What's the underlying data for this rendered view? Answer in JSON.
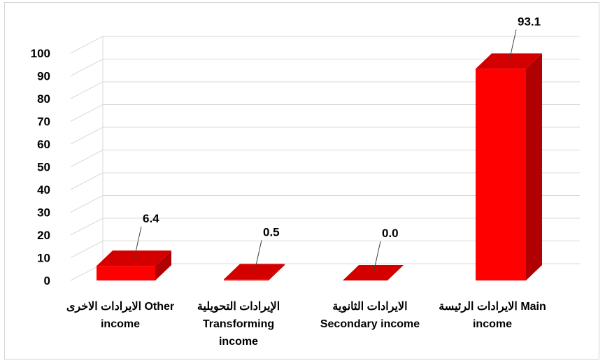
{
  "chart_data": {
    "type": "bar",
    "style": "3d-column",
    "categories": [
      [
        "الايرادات الاخرى  Other",
        "income"
      ],
      [
        "الإيرادات التحويلية",
        "Transforming",
        "income"
      ],
      [
        "الايرادات الثانوية",
        "Secondary income"
      ],
      [
        "الايرادات الرئيسة  Main",
        "income"
      ]
    ],
    "values": [
      6.4,
      0.5,
      0.0,
      93.1
    ],
    "data_labels": [
      "6.4",
      "0.5",
      "0.0",
      "93.1"
    ],
    "yticks": [
      "0",
      "10",
      "20",
      "30",
      "40",
      "50",
      "60",
      "70",
      "80",
      "90",
      "100"
    ],
    "ylim": [
      0,
      100
    ],
    "grid": true,
    "colors": {
      "front": "#ff0000",
      "side": "#b00000",
      "top": "#d40000",
      "grid": "#d9d9d9"
    }
  }
}
